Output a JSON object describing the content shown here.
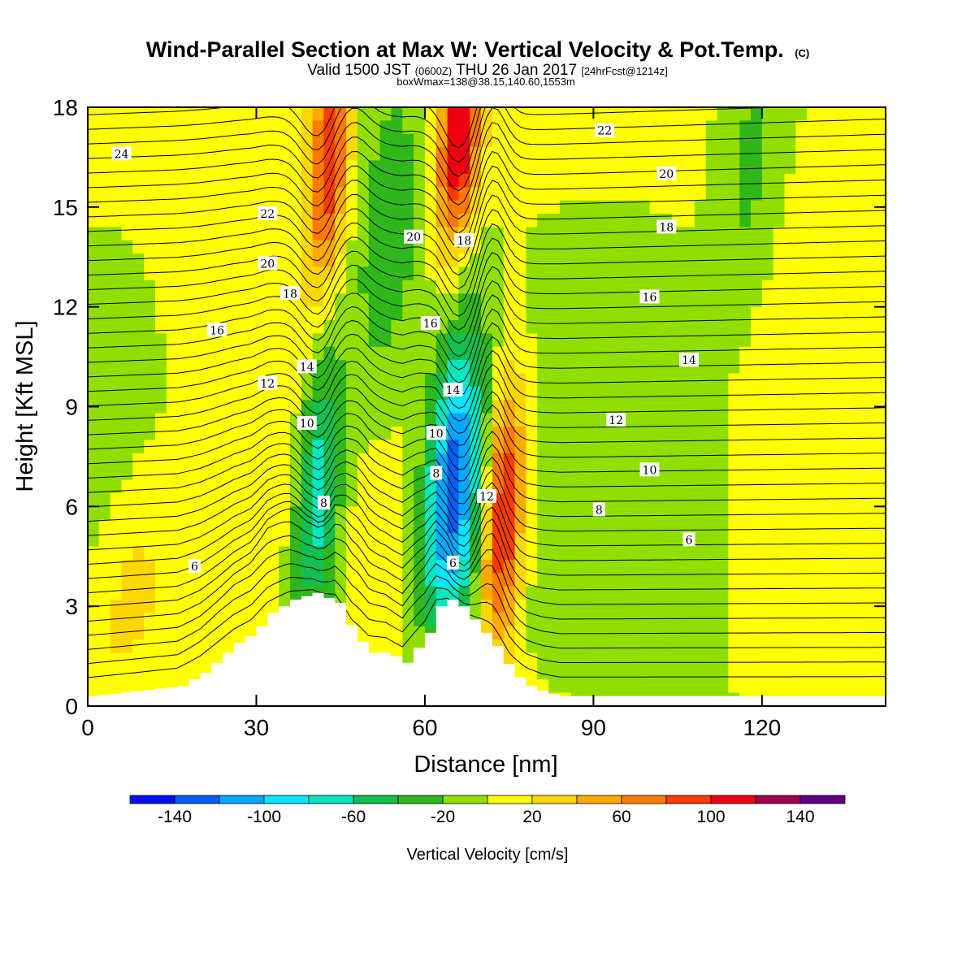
{
  "title": {
    "main": "Wind-Parallel Section at Max W: Vertical Velocity & Pot.Temp.",
    "copyright": "(C)",
    "valid_pre": "Valid 1500 JST",
    "valid_utc": "(0600Z)",
    "valid_date": "THU 26 Jan 2017",
    "forecast": "[24hrFcst@1214z]",
    "box": "boxWmax=138@38.15,140.60,1553m"
  },
  "chart_data": {
    "type": "heatmap",
    "xlabel": "Distance [nm]",
    "ylabel": "Height [Kft MSL]",
    "xlim": [
      0,
      142
    ],
    "ylim": [
      0,
      18
    ],
    "xticks": [
      0,
      30,
      60,
      90,
      120
    ],
    "yticks": [
      0,
      3,
      6,
      9,
      12,
      15,
      18
    ],
    "grid": false,
    "colorbar": {
      "label": "Vertical Velocity [cm/s]",
      "range": [
        -160,
        160
      ],
      "tick_values": [
        -140,
        -100,
        -60,
        -20,
        20,
        60,
        100,
        140
      ],
      "tick_labels": [
        "-140",
        "-100",
        "-60",
        "-20",
        "20",
        "60",
        "100",
        "140"
      ],
      "bins": [
        {
          "from": -160,
          "to": -140,
          "color": "#0010ff"
        },
        {
          "from": -140,
          "to": -120,
          "color": "#0060ff"
        },
        {
          "from": -120,
          "to": -100,
          "color": "#00a8ff"
        },
        {
          "from": -100,
          "to": -80,
          "color": "#00e8ff"
        },
        {
          "from": -80,
          "to": -60,
          "color": "#00e8c0"
        },
        {
          "from": -60,
          "to": -40,
          "color": "#10c050"
        },
        {
          "from": -40,
          "to": -20,
          "color": "#2fb81a"
        },
        {
          "from": -20,
          "to": 0,
          "color": "#90df00"
        },
        {
          "from": 0,
          "to": 20,
          "color": "#ffff00"
        },
        {
          "from": 20,
          "to": 40,
          "color": "#ffd700"
        },
        {
          "from": 40,
          "to": 60,
          "color": "#ffaa00"
        },
        {
          "from": 60,
          "to": 80,
          "color": "#ff7a00"
        },
        {
          "from": 80,
          "to": 100,
          "color": "#ff3c00"
        },
        {
          "from": 100,
          "to": 120,
          "color": "#ee0010"
        },
        {
          "from": 120,
          "to": 140,
          "color": "#a0004a"
        },
        {
          "from": 140,
          "to": 160,
          "color": "#600080"
        }
      ]
    },
    "w_field_features": [
      {
        "kind": "downdraft",
        "x": 65,
        "y": 6.5,
        "peak_w": -140,
        "sx": 3.5,
        "sy": 3.2
      },
      {
        "kind": "downdraft",
        "x": 41,
        "y": 6.5,
        "peak_w": -85,
        "sx": 3,
        "sy": 3.2
      },
      {
        "kind": "downdraft",
        "x": 53,
        "y": 13.5,
        "peak_w": -45,
        "sx": 5,
        "sy": 4
      },
      {
        "kind": "updraft",
        "x": 74,
        "y": 5.8,
        "peak_w": 110,
        "sx": 2.5,
        "sy": 2.8
      },
      {
        "kind": "updraft",
        "x": 66,
        "y": 17,
        "peak_w": 120,
        "sx": 2.5,
        "sy": 2.2
      },
      {
        "kind": "updraft",
        "x": 43,
        "y": 16.5,
        "peak_w": 95,
        "sx": 2.5,
        "sy": 2.5
      },
      {
        "kind": "updraft",
        "x": 8,
        "y": 3.5,
        "peak_w": 25,
        "sx": 4,
        "sy": 2
      },
      {
        "kind": "downdraft",
        "x": 118,
        "y": 16,
        "peak_w": -30,
        "sx": 4,
        "sy": 3
      },
      {
        "kind": "downdraft",
        "x": 100,
        "y": 5,
        "peak_w": -15,
        "sx": 15,
        "sy": 6
      }
    ],
    "terrain": {
      "x": [
        0,
        16,
        18,
        20,
        22,
        26,
        29,
        32,
        36,
        40,
        44,
        47,
        50,
        53,
        56,
        60,
        62,
        64,
        66,
        70,
        72,
        75,
        78,
        81,
        84,
        142
      ],
      "height": [
        0.3,
        0.6,
        0.8,
        1.0,
        1.3,
        1.9,
        2.2,
        2.8,
        3.2,
        3.4,
        3.1,
        2.1,
        1.6,
        1.6,
        1.3,
        2.2,
        3.0,
        3.2,
        3.0,
        2.2,
        1.8,
        1.0,
        0.6,
        0.4,
        0.3,
        0.3
      ]
    },
    "theta_contours": {
      "levels": [
        6,
        8,
        10,
        12,
        14,
        16,
        18,
        20,
        22,
        24
      ],
      "labels": [
        {
          "text": "24",
          "x": 6,
          "y": 16.6
        },
        {
          "text": "22",
          "x": 32,
          "y": 14.8
        },
        {
          "text": "20",
          "x": 32,
          "y": 13.3
        },
        {
          "text": "18",
          "x": 36,
          "y": 12.4
        },
        {
          "text": "16",
          "x": 23,
          "y": 11.3
        },
        {
          "text": "14",
          "x": 39,
          "y": 10.2
        },
        {
          "text": "12",
          "x": 32,
          "y": 9.7
        },
        {
          "text": "10",
          "x": 39,
          "y": 8.5
        },
        {
          "text": "8",
          "x": 42,
          "y": 6.1
        },
        {
          "text": "6",
          "x": 19,
          "y": 4.2
        },
        {
          "text": "20",
          "x": 58,
          "y": 14.1
        },
        {
          "text": "18",
          "x": 67,
          "y": 14.0
        },
        {
          "text": "16",
          "x": 61,
          "y": 11.5
        },
        {
          "text": "14",
          "x": 65,
          "y": 9.5
        },
        {
          "text": "10",
          "x": 62,
          "y": 8.2
        },
        {
          "text": "8",
          "x": 62,
          "y": 7.0
        },
        {
          "text": "12",
          "x": 71,
          "y": 6.3
        },
        {
          "text": "6",
          "x": 65,
          "y": 4.3
        },
        {
          "text": "22",
          "x": 92,
          "y": 17.3
        },
        {
          "text": "20",
          "x": 103,
          "y": 16.0
        },
        {
          "text": "18",
          "x": 103,
          "y": 14.4
        },
        {
          "text": "16",
          "x": 100,
          "y": 12.3
        },
        {
          "text": "14",
          "x": 107,
          "y": 10.4
        },
        {
          "text": "12",
          "x": 94,
          "y": 8.6
        },
        {
          "text": "10",
          "x": 100,
          "y": 7.1
        },
        {
          "text": "8",
          "x": 91,
          "y": 5.9
        },
        {
          "text": "6",
          "x": 107,
          "y": 5.0
        }
      ]
    }
  }
}
